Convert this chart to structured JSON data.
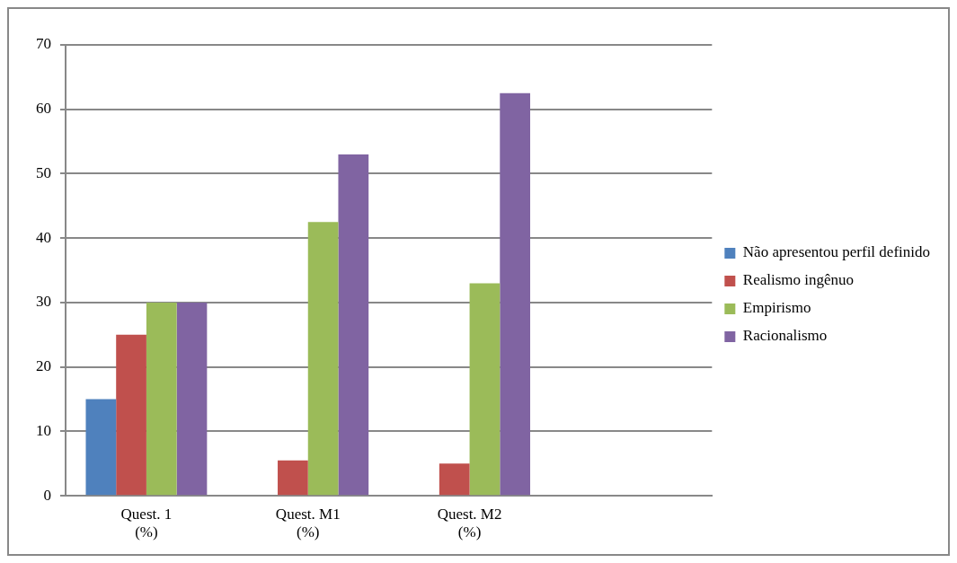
{
  "chart_data": {
    "type": "bar",
    "categories": [
      "Quest. 1\n(%)",
      "Quest. M1\n(%)",
      "Quest. M2\n(%)",
      null
    ],
    "series": [
      {
        "name": "Não apresentou perfil definido",
        "color": "#4f81bd",
        "values": [
          15,
          0,
          0,
          null
        ]
      },
      {
        "name": "Realismo ingênuo",
        "color": "#c0504d",
        "values": [
          25,
          5.5,
          5,
          null
        ]
      },
      {
        "name": "Empirismo",
        "color": "#9bbb59",
        "values": [
          30,
          42.5,
          33,
          null
        ]
      },
      {
        "name": "Racionalismo",
        "color": "#8064a2",
        "values": [
          30,
          53,
          62.5,
          null
        ]
      }
    ],
    "ylim": [
      0,
      70
    ],
    "yticks": [
      0,
      10,
      20,
      30,
      40,
      50,
      60,
      70
    ],
    "grid": "y",
    "legend": "right"
  }
}
